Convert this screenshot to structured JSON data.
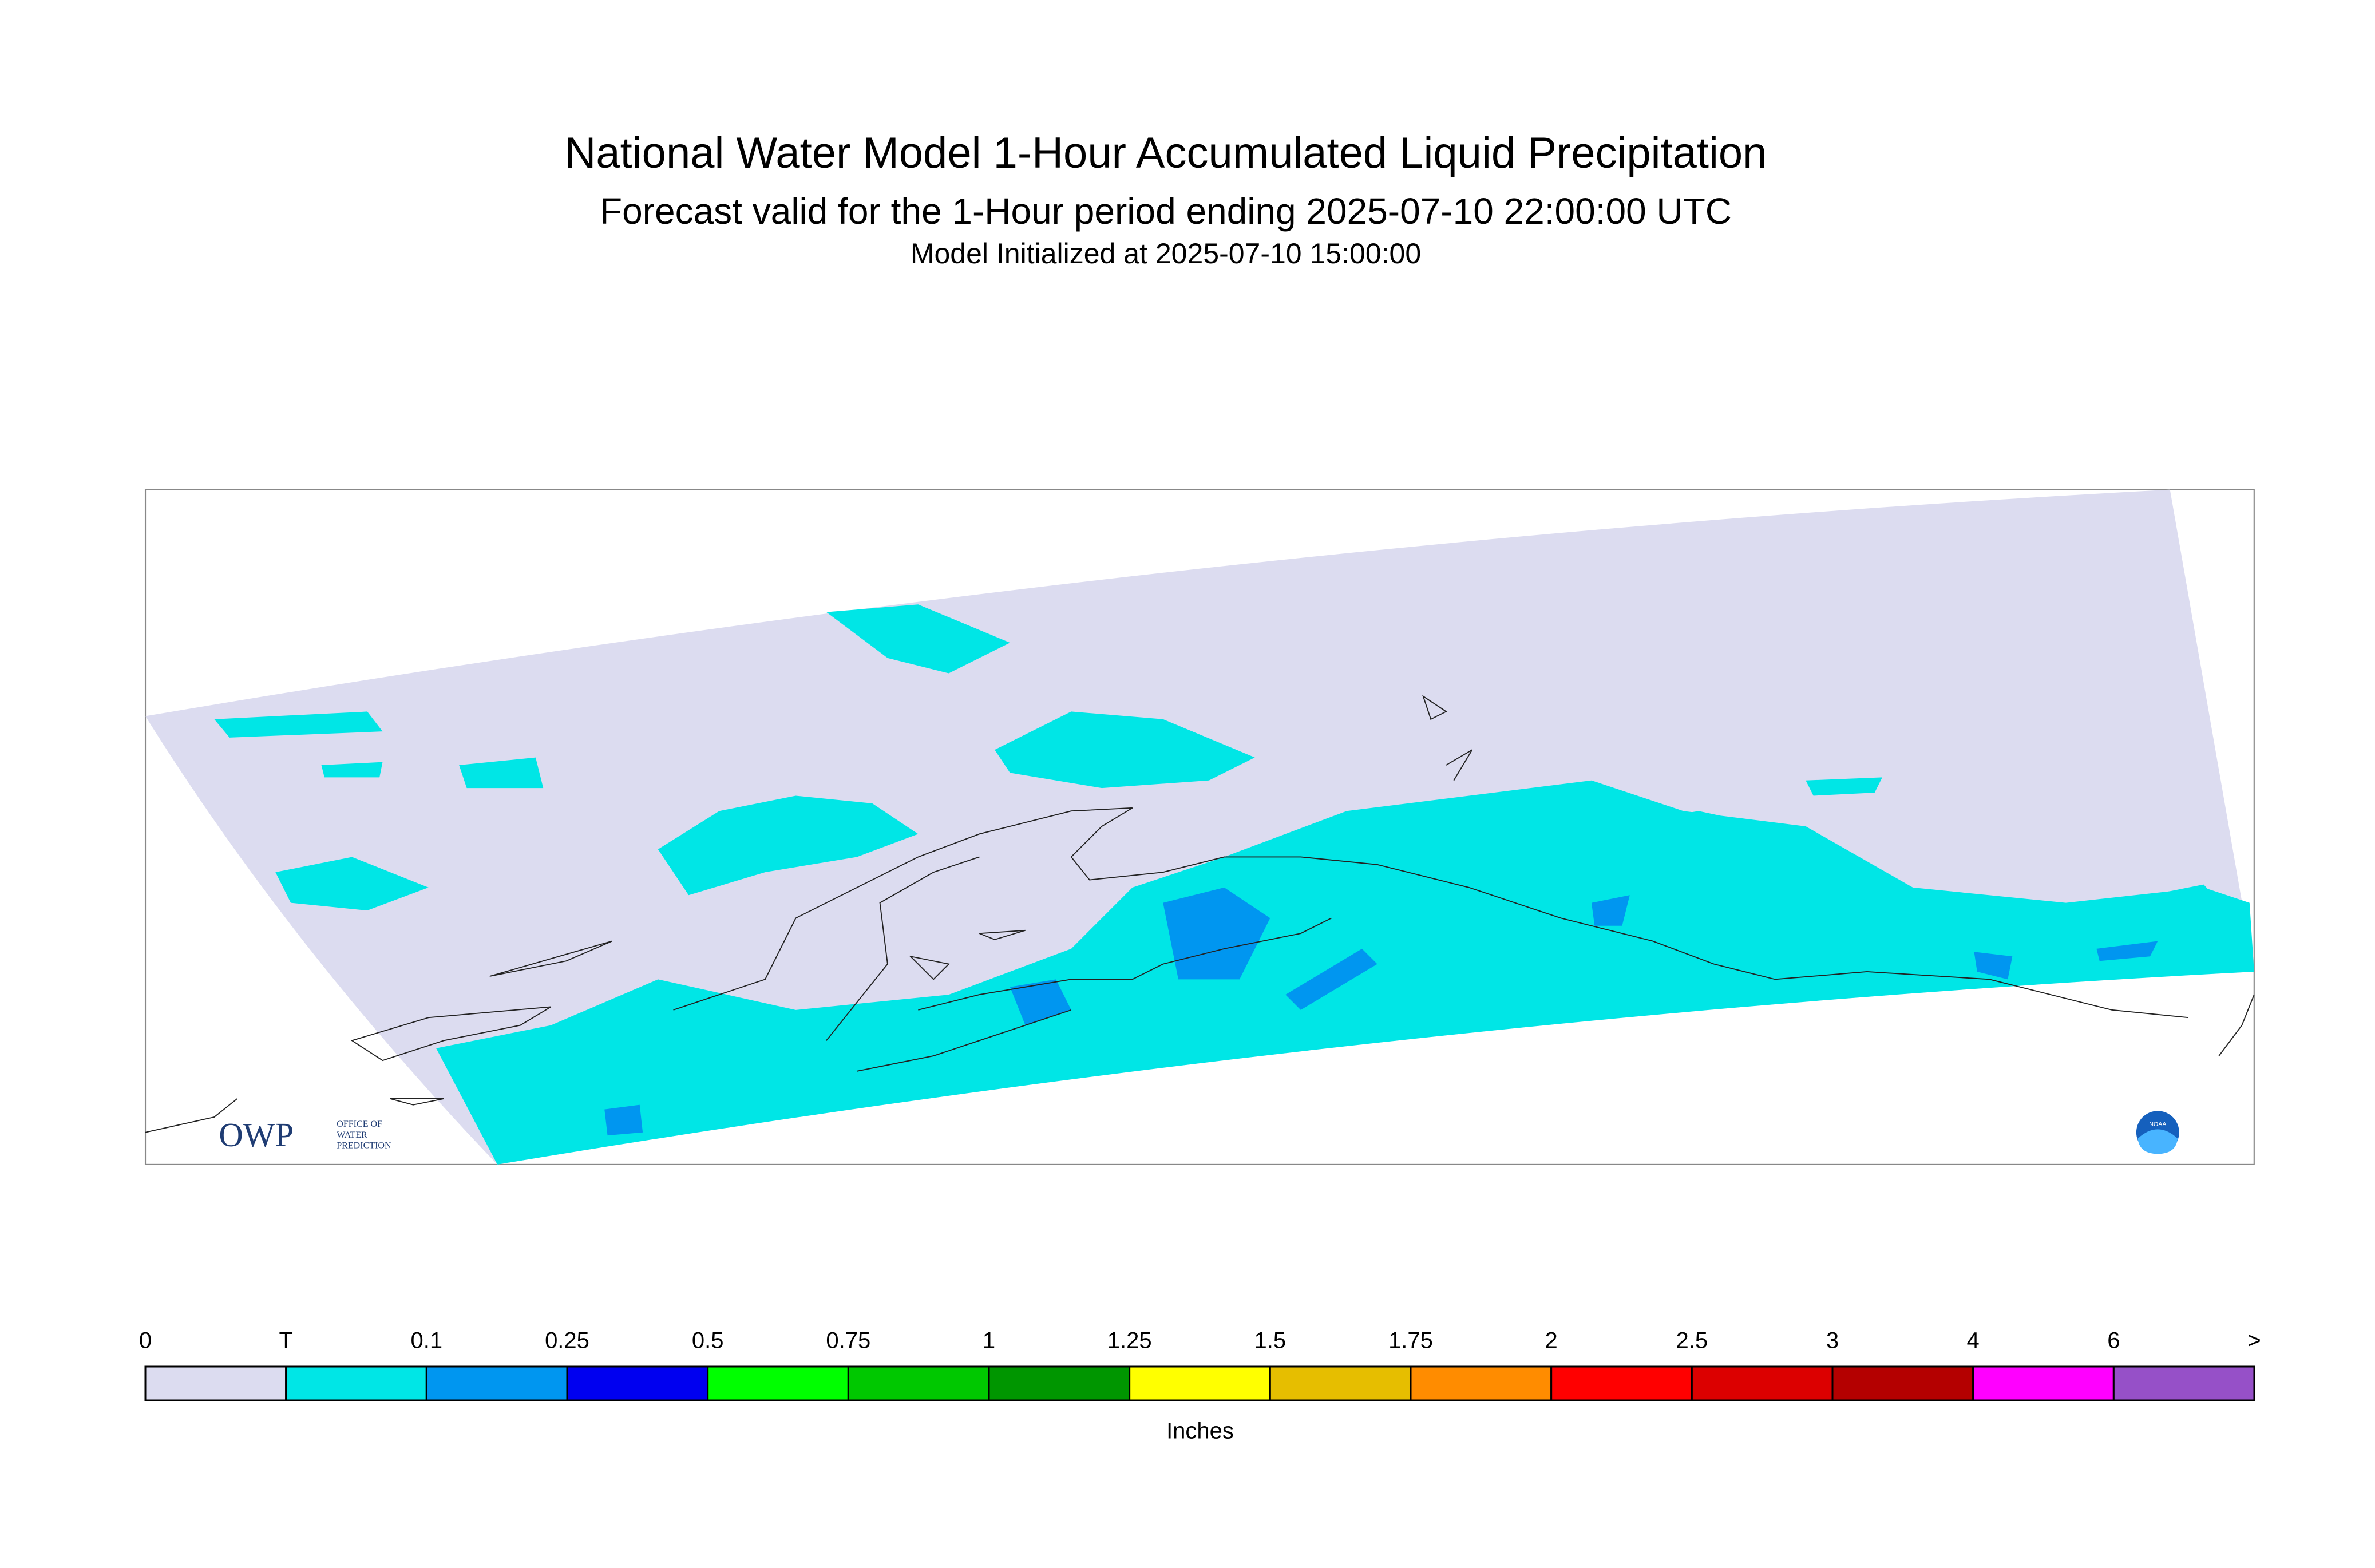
{
  "header": {
    "title": "National Water Model 1-Hour Accumulated Liquid Precipitation",
    "subtitle": "Forecast valid for the 1-Hour period ending 2025-07-10 22:00:00 UTC",
    "initialized": "Model Initialized at 2025-07-10 15:00:00"
  },
  "legend": {
    "labels": [
      "0",
      "T",
      "0.1",
      "0.25",
      "0.5",
      "0.75",
      "1",
      "1.25",
      "1.5",
      "1.75",
      "2",
      "2.5",
      "3",
      "4",
      "6",
      ">"
    ],
    "colors": [
      "#dcdcf0",
      "#00e6e6",
      "#0096f0",
      "#0000f0",
      "#00ff00",
      "#00c800",
      "#009600",
      "#ffff00",
      "#e6be00",
      "#ff8c00",
      "#ff0000",
      "#dc0000",
      "#b40000",
      "#ff00ff",
      "#9650c8"
    ],
    "unit": "Inches"
  },
  "logos": {
    "owp": "OWP",
    "owp_lines": [
      "OFFICE OF",
      "WATER",
      "PREDICTION"
    ],
    "noaa": "NOAA"
  }
}
